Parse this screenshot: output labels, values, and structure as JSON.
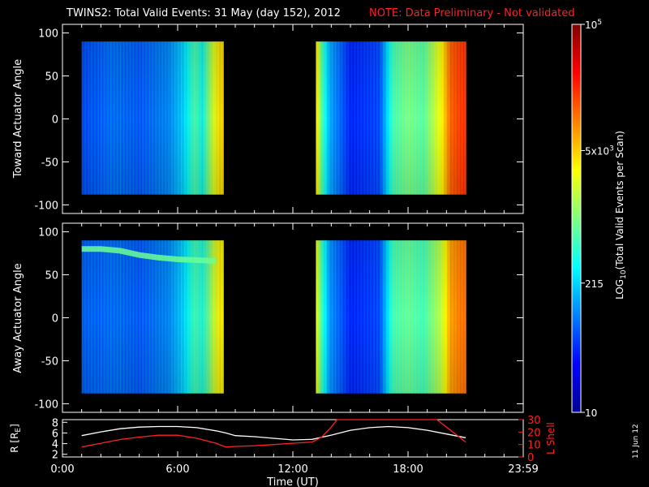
{
  "title": "TWINS2: Total Valid Events: 31 May (day 152), 2012",
  "note": "NOTE: Data Preliminary - Not validated",
  "date_stamp": "11 Jun 12",
  "colors": {
    "note": "#ff2020",
    "rshell_line": "#ffffff",
    "lshell_line": "#ff2020"
  },
  "chart_data": [
    {
      "type": "heatmap",
      "panel": "toward",
      "ylabel": "Toward Actuator Angle",
      "ylim": [
        -110,
        110
      ],
      "yticks": [
        100,
        50,
        0,
        -50,
        -100
      ],
      "xlim": [
        0,
        24
      ],
      "data_y_range": [
        -88,
        90
      ],
      "x_segments": [
        [
          1.0,
          8.4
        ],
        [
          13.2,
          21.0
        ]
      ],
      "x_profile": [
        {
          "x": 1.0,
          "v": 0.2
        },
        {
          "x": 2.5,
          "v": 0.24
        },
        {
          "x": 4.0,
          "v": 0.22
        },
        {
          "x": 5.5,
          "v": 0.26
        },
        {
          "x": 6.3,
          "v": 0.34
        },
        {
          "x": 6.9,
          "v": 0.45
        },
        {
          "x": 7.3,
          "v": 0.38
        },
        {
          "x": 7.6,
          "v": 0.5
        },
        {
          "x": 7.9,
          "v": 0.6
        },
        {
          "x": 8.2,
          "v": 0.66
        },
        {
          "x": 13.2,
          "v": 0.66
        },
        {
          "x": 13.5,
          "v": 0.46
        },
        {
          "x": 13.9,
          "v": 0.3
        },
        {
          "x": 15.0,
          "v": 0.16
        },
        {
          "x": 16.5,
          "v": 0.2
        },
        {
          "x": 17.2,
          "v": 0.44
        },
        {
          "x": 18.0,
          "v": 0.5
        },
        {
          "x": 18.8,
          "v": 0.46
        },
        {
          "x": 19.7,
          "v": 0.62
        },
        {
          "x": 20.2,
          "v": 0.78
        },
        {
          "x": 20.8,
          "v": 0.82
        }
      ]
    },
    {
      "type": "heatmap",
      "panel": "away",
      "ylabel": "Away Actuator Angle",
      "ylim": [
        -110,
        110
      ],
      "yticks": [
        100,
        50,
        0,
        -50,
        -100
      ],
      "xlim": [
        0,
        24
      ],
      "data_y_range": [
        -88,
        90
      ],
      "x_segments": [
        [
          1.0,
          8.4
        ],
        [
          13.2,
          21.0
        ]
      ],
      "x_profile": [
        {
          "x": 1.0,
          "v": 0.22
        },
        {
          "x": 2.5,
          "v": 0.24
        },
        {
          "x": 4.0,
          "v": 0.22
        },
        {
          "x": 5.5,
          "v": 0.26
        },
        {
          "x": 6.3,
          "v": 0.34
        },
        {
          "x": 6.9,
          "v": 0.44
        },
        {
          "x": 7.3,
          "v": 0.4
        },
        {
          "x": 7.6,
          "v": 0.48
        },
        {
          "x": 7.9,
          "v": 0.58
        },
        {
          "x": 8.2,
          "v": 0.64
        },
        {
          "x": 13.2,
          "v": 0.62
        },
        {
          "x": 13.5,
          "v": 0.44
        },
        {
          "x": 13.9,
          "v": 0.28
        },
        {
          "x": 15.0,
          "v": 0.16
        },
        {
          "x": 16.5,
          "v": 0.2
        },
        {
          "x": 17.2,
          "v": 0.44
        },
        {
          "x": 18.0,
          "v": 0.48
        },
        {
          "x": 18.8,
          "v": 0.44
        },
        {
          "x": 19.7,
          "v": 0.56
        },
        {
          "x": 20.2,
          "v": 0.72
        },
        {
          "x": 20.8,
          "v": 0.76
        }
      ],
      "band": [
        {
          "x": 1.0,
          "y": 80
        },
        {
          "x": 2.0,
          "y": 80
        },
        {
          "x": 3.0,
          "y": 78
        },
        {
          "x": 4.0,
          "y": 73
        },
        {
          "x": 5.0,
          "y": 70
        },
        {
          "x": 6.0,
          "y": 68
        },
        {
          "x": 7.0,
          "y": 67
        },
        {
          "x": 8.0,
          "y": 66
        }
      ]
    },
    {
      "type": "line",
      "panel": "orbit",
      "ylabel": "R [R",
      "ylabel_sub": "E",
      "ylabel_end": "]",
      "ylim": [
        1.5,
        8.5
      ],
      "yticks": [
        8,
        6,
        4,
        2
      ],
      "y2label": "L Shell",
      "y2lim": [
        0,
        30
      ],
      "y2ticks": [
        30,
        20,
        10,
        0
      ],
      "xlabel": "Time (UT)",
      "xlim": [
        0,
        24
      ],
      "xticks": [
        {
          "x": 0,
          "label": "0:00"
        },
        {
          "x": 6,
          "label": "6:00"
        },
        {
          "x": 12,
          "label": "12:00"
        },
        {
          "x": 18,
          "label": "18:00"
        },
        {
          "x": 24,
          "label": "23:59"
        }
      ],
      "series": [
        {
          "axis": "left",
          "x": [
            1.0,
            2.0,
            3.0,
            4.0,
            5.0,
            6.0,
            7.0,
            8.0,
            8.5,
            9.0,
            10.0,
            11.0,
            12.0,
            13.0,
            14.0,
            15.0,
            16.0,
            17.0,
            18.0,
            19.0,
            20.0,
            21.0
          ],
          "y": [
            5.5,
            6.2,
            6.8,
            7.1,
            7.2,
            7.2,
            7.0,
            6.4,
            6.0,
            5.5,
            5.3,
            5.0,
            4.7,
            4.8,
            5.6,
            6.5,
            7.0,
            7.2,
            7.0,
            6.5,
            5.8,
            5.1
          ]
        },
        {
          "axis": "right",
          "x": [
            1.0,
            2.0,
            3.0,
            4.0,
            5.0,
            6.0,
            7.0,
            8.0,
            8.5,
            9.0,
            10.0,
            11.0,
            12.0,
            13.0,
            13.5,
            14.0,
            14.3,
            19.5,
            20.0,
            20.5,
            21.0
          ],
          "y": [
            8,
            11,
            14,
            16,
            17.5,
            17.5,
            15,
            11,
            8,
            8.5,
            9,
            10,
            11,
            12,
            16,
            24,
            32,
            32,
            24,
            18,
            12
          ]
        }
      ]
    },
    {
      "type": "colorbar",
      "label": "LOG",
      "label_sub": "10",
      "label_rest": "(Total Valid Events per Scan)",
      "scale": "log",
      "range": [
        10,
        100000
      ],
      "ticks": [
        {
          "value": 100000,
          "base": "10",
          "exp": "5"
        },
        {
          "value": 5000,
          "base": "5x10",
          "exp": "3"
        },
        {
          "value": 215,
          "base": "215",
          "exp": ""
        },
        {
          "value": 10,
          "base": "10",
          "exp": ""
        }
      ]
    }
  ]
}
